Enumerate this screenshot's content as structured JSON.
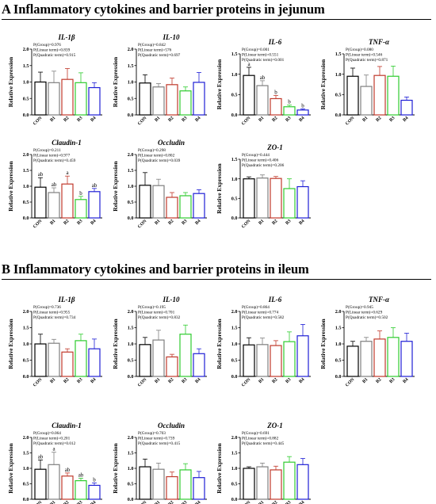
{
  "sections": [
    {
      "title": "A Inflammatory cytokines and barrier proteins in jejunum"
    },
    {
      "title": "B Inflammatory cytokines and barrier proteins in ileum"
    }
  ],
  "colors": {
    "CON": "#000000",
    "B1": "#7f7f7f",
    "B2": "#c0392b",
    "B3": "#2ecc2e",
    "B4": "#1f1fd6"
  },
  "chart_data": [
    {
      "section": 0,
      "type": "bar",
      "title": "IL-1β",
      "ylabel": "Relative Expression",
      "ylim": [
        0,
        2.0
      ],
      "yticks": [
        "0.0",
        "0.5",
        "1.0",
        "1.5",
        "2.0"
      ],
      "categories": [
        "CON",
        "B1",
        "B2",
        "B3",
        "B4"
      ],
      "values": [
        1.0,
        0.98,
        1.08,
        0.98,
        0.83
      ],
      "errors": [
        0.3,
        0.35,
        0.33,
        0.3,
        0.15
      ],
      "letters": [
        "",
        "",
        "",
        "",
        ""
      ],
      "stats": [
        "P(Group)=0.976",
        "P(Linear term)=0.839",
        "P(Quadratic term)=0.915"
      ]
    },
    {
      "section": 0,
      "type": "bar",
      "title": "IL-10",
      "ylabel": "Relative Expression",
      "ylim": [
        0,
        2.0
      ],
      "yticks": [
        "0.0",
        "0.5",
        "1.0",
        "1.5",
        "2.0"
      ],
      "categories": [
        "CON",
        "B1",
        "B2",
        "B3",
        "B4"
      ],
      "values": [
        0.97,
        0.85,
        0.92,
        0.73,
        0.99
      ],
      "errors": [
        0.25,
        0.1,
        0.2,
        0.12,
        0.3
      ],
      "letters": [
        "",
        "",
        "",
        "",
        ""
      ],
      "stats": [
        "P(Group)=0.842",
        "P(Linear term)=576",
        "P(Quadratic term)=0.697"
      ]
    },
    {
      "section": 0,
      "type": "bar",
      "title": "IL-6",
      "ylabel": "Relative Expression",
      "ylim": [
        0,
        1.5
      ],
      "yticks": [
        "0.0",
        "0.5",
        "1.0",
        "1.5"
      ],
      "categories": [
        "CON",
        "B1",
        "B2",
        "B3",
        "B4"
      ],
      "values": [
        0.97,
        0.72,
        0.4,
        0.2,
        0.12
      ],
      "errors": [
        0.2,
        0.12,
        0.08,
        0.04,
        0.03
      ],
      "letters": [
        "a",
        "ab",
        "b",
        "b",
        "b"
      ],
      "stats": [
        "P(Group)=0.001",
        "P(Linear term)=0.551",
        "P(Quadratic term)=0.001"
      ]
    },
    {
      "section": 0,
      "type": "bar",
      "title": "TNF-α",
      "ylabel": "Relative Expression",
      "ylim": [
        0,
        1.5
      ],
      "yticks": [
        "0.0",
        "0.5",
        "1.0",
        "1.5"
      ],
      "categories": [
        "CON",
        "B1",
        "B2",
        "B3",
        "B4"
      ],
      "values": [
        0.95,
        0.7,
        0.97,
        0.95,
        0.36
      ],
      "errors": [
        0.2,
        0.28,
        0.22,
        0.25,
        0.08
      ],
      "letters": [
        "",
        "",
        "",
        "",
        ""
      ],
      "stats": [
        "P(Group)=0.080",
        "P(Linear term)=0.546",
        "P(Quadratic term)=0.871"
      ]
    },
    {
      "section": 0,
      "type": "bar",
      "title": "Claudin-1",
      "ylabel": "Relative Expression",
      "ylim": [
        0,
        2.0
      ],
      "yticks": [
        "0.0",
        "0.5",
        "1.0",
        "1.5",
        "2.0"
      ],
      "categories": [
        "CON",
        "B1",
        "B2",
        "B3",
        "B4"
      ],
      "values": [
        0.97,
        0.8,
        1.07,
        0.58,
        0.83
      ],
      "errors": [
        0.3,
        0.15,
        0.25,
        0.1,
        0.1
      ],
      "letters": [
        "ab",
        "ab",
        "a",
        "b",
        "ab"
      ],
      "stats": [
        "P(Group)=0.211",
        "P(Linear term)=0.977",
        "P(Quadratic term)=0.459"
      ]
    },
    {
      "section": 0,
      "type": "bar",
      "title": "Occludin",
      "ylabel": "Relative Expression",
      "ylim": [
        0,
        2.0
      ],
      "yticks": [
        "0.0",
        "0.5",
        "1.0",
        "1.5",
        "2.0"
      ],
      "categories": [
        "CON",
        "B1",
        "B2",
        "B3",
        "B4"
      ],
      "values": [
        1.03,
        1.02,
        0.65,
        0.7,
        0.77
      ],
      "errors": [
        0.4,
        0.2,
        0.15,
        0.1,
        0.12
      ],
      "letters": [
        "",
        "",
        "",
        "",
        ""
      ],
      "stats": [
        "P(Group)=0.298",
        "P(Linear term)=0.802",
        "P(Quadratic term)=0.039"
      ]
    },
    {
      "section": 0,
      "type": "bar",
      "title": "ZO-1",
      "ylabel": "Relative Expression",
      "ylim": [
        0,
        1.5
      ],
      "yticks": [
        "0.0",
        "0.5",
        "1.0",
        "1.5"
      ],
      "categories": [
        "CON",
        "B1",
        "B2",
        "B3",
        "B4"
      ],
      "values": [
        1.0,
        1.02,
        1.01,
        0.75,
        0.8
      ],
      "errors": [
        0.05,
        0.08,
        0.05,
        0.25,
        0.15
      ],
      "letters": [
        "",
        "",
        "",
        "",
        ""
      ],
      "stats": [
        "P(Group)=0.444",
        "P(Linear term)=0.406",
        "P(Quadratic term)=0.206"
      ]
    },
    {
      "section": 1,
      "type": "bar",
      "title": "IL-1β",
      "ylabel": "Relative Expression",
      "ylim": [
        0,
        2.0
      ],
      "yticks": [
        "0.0",
        "0.5",
        "1.0",
        "1.5",
        "2.0"
      ],
      "categories": [
        "CON",
        "B1",
        "B2",
        "B3",
        "B4"
      ],
      "values": [
        1.0,
        1.02,
        0.75,
        1.1,
        0.85
      ],
      "errors": [
        0.3,
        0.12,
        0.1,
        0.2,
        0.3
      ],
      "letters": [
        "",
        "",
        "",
        "",
        ""
      ],
      "stats": [
        "P(Group)=0.736",
        "P(Linear term)=0.955",
        "P(Quadratic term)=0.734"
      ]
    },
    {
      "section": 1,
      "type": "bar",
      "title": "IL-10",
      "ylabel": "Relative Expression",
      "ylim": [
        0,
        2.0
      ],
      "yticks": [
        "0.0",
        "0.5",
        "1.0",
        "1.5",
        "2.0"
      ],
      "categories": [
        "CON",
        "B1",
        "B2",
        "B3",
        "B4"
      ],
      "values": [
        0.98,
        1.12,
        0.6,
        1.3,
        0.7
      ],
      "errors": [
        0.22,
        0.3,
        0.08,
        0.28,
        0.15
      ],
      "letters": [
        "",
        "",
        "",
        "",
        ""
      ],
      "stats": [
        "P(Group)=0.195",
        "P(Linear term)=0.701",
        "P(Quadratic term)=0.832"
      ]
    },
    {
      "section": 1,
      "type": "bar",
      "title": "IL-6",
      "ylabel": "Relative Expression",
      "ylim": [
        0,
        2.0
      ],
      "yticks": [
        "0.0",
        "0.5",
        "1.0",
        "1.5",
        "2.0"
      ],
      "categories": [
        "CON",
        "B1",
        "B2",
        "B3",
        "B4"
      ],
      "values": [
        0.97,
        0.98,
        0.95,
        1.07,
        1.25
      ],
      "errors": [
        0.22,
        0.2,
        0.15,
        0.3,
        0.35
      ],
      "letters": [
        "",
        "",
        "",
        "",
        ""
      ],
      "stats": [
        "P(Group)=0.864",
        "P(Linear term)=0.774",
        "P(Quadratic term)=0.582"
      ]
    },
    {
      "section": 1,
      "type": "bar",
      "title": "TNF-α",
      "ylabel": "Relative Expression",
      "ylim": [
        0,
        2.0
      ],
      "yticks": [
        "0.0",
        "0.5",
        "1.0",
        "1.5",
        "2.0"
      ],
      "categories": [
        "CON",
        "B1",
        "B2",
        "B3",
        "B4"
      ],
      "values": [
        0.93,
        1.08,
        1.15,
        1.2,
        1.08
      ],
      "errors": [
        0.15,
        0.12,
        0.25,
        0.3,
        0.25
      ],
      "letters": [
        "",
        "",
        "",
        "",
        ""
      ],
      "stats": [
        "P(Group)=0.945",
        "P(Linear term)=0.629",
        "P(Quadratic term)=0.502"
      ]
    },
    {
      "section": 1,
      "type": "bar",
      "title": "Claudin-1",
      "ylabel": "Relative Expression",
      "ylim": [
        0,
        2.0
      ],
      "yticks": [
        "0.0",
        "0.5",
        "1.0",
        "1.5",
        "2.0"
      ],
      "categories": [
        "CON",
        "B1",
        "B2",
        "B3",
        "B4"
      ],
      "values": [
        0.97,
        1.12,
        0.75,
        0.6,
        0.45
      ],
      "errors": [
        0.3,
        0.4,
        0.1,
        0.08,
        0.08
      ],
      "letters": [
        "ab",
        "a",
        "ab",
        "ab",
        "b"
      ],
      "stats": [
        "P(Group)=0.064",
        "P(Linear term)=0.201",
        "P(Quadratic term)=0.012"
      ]
    },
    {
      "section": 1,
      "type": "bar",
      "title": "Occludin",
      "ylabel": "Relative Expression",
      "ylim": [
        0,
        2.0
      ],
      "yticks": [
        "0.0",
        "0.5",
        "1.0",
        "1.5",
        "2.0"
      ],
      "categories": [
        "CON",
        "B1",
        "B2",
        "B3",
        "B4"
      ],
      "values": [
        1.05,
        0.97,
        0.73,
        0.95,
        0.7
      ],
      "errors": [
        0.25,
        0.2,
        0.15,
        0.2,
        0.2
      ],
      "letters": [
        "",
        "",
        "",
        "",
        ""
      ],
      "stats": [
        "P(Group)=0.703",
        "P(Linear term)=0.739",
        "P(Quadratic term)=0.415"
      ]
    },
    {
      "section": 1,
      "type": "bar",
      "title": "ZO-1",
      "ylabel": "Relative Expression",
      "ylim": [
        0,
        2.0
      ],
      "yticks": [
        "0.0",
        "0.5",
        "1.0",
        "1.5",
        "2.0"
      ],
      "categories": [
        "CON",
        "B1",
        "B2",
        "B3",
        "B4"
      ],
      "values": [
        1.0,
        1.05,
        0.95,
        1.2,
        1.12
      ],
      "errors": [
        0.05,
        0.12,
        0.12,
        0.18,
        0.2
      ],
      "letters": [
        "",
        "",
        "",
        "",
        ""
      ],
      "stats": [
        "P(Group)=0.691",
        "P(Linear term)=0.882",
        "P(Quadratic term)=0.445"
      ]
    }
  ]
}
